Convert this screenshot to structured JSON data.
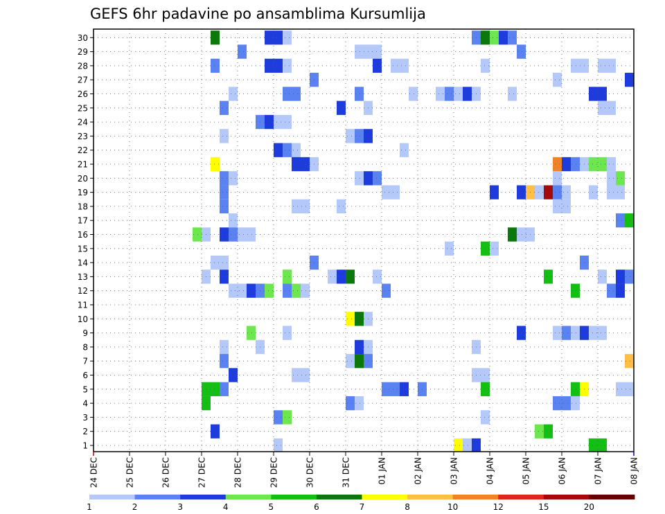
{
  "chart_data": {
    "type": "heatmap",
    "title": "GEFS 6hr padavine po ansamblima Kursumlija",
    "xlabel": "",
    "ylabel": "",
    "x_tick_labels": [
      "24 DEC",
      "25 DEC",
      "26 DEC",
      "27 DEC",
      "28 DEC",
      "29 DEC",
      "30 DEC",
      "31 DEC",
      "01 JAN",
      "02 JAN",
      "03 JAN",
      "04 JAN",
      "05 JAN",
      "06 JAN",
      "07 JAN",
      "08 JAN"
    ],
    "y_tick_labels": [
      "1",
      "2",
      "3",
      "4",
      "5",
      "6",
      "7",
      "8",
      "9",
      "10",
      "11",
      "12",
      "13",
      "14",
      "15",
      "16",
      "17",
      "18",
      "19",
      "20",
      "21",
      "22",
      "23",
      "24",
      "25",
      "26",
      "27",
      "28",
      "29",
      "30"
    ],
    "x_unit": "6-hour steps from 24 DEC 00Z",
    "xlim": [
      0,
      60
    ],
    "ylim": [
      0,
      30
    ],
    "grid": true,
    "legend": {
      "placement": "bottom",
      "bounds": [
        "1",
        "2",
        "3",
        "4",
        "5",
        "6",
        "7",
        "8",
        "10",
        "12",
        "15",
        "20"
      ],
      "colors": [
        "#b4c8fa",
        "#5a82f0",
        "#1e3cdc",
        "#6ee650",
        "#14be14",
        "#0a780a",
        "#ffff00",
        "#ffbe46",
        "#f08228",
        "#dc2814",
        "#a50a0a",
        "#640000"
      ]
    },
    "cells": [
      [
        14,
        30,
        6
      ],
      [
        20,
        30,
        3
      ],
      [
        21,
        30,
        3
      ],
      [
        22,
        30,
        1
      ],
      [
        43,
        30,
        2
      ],
      [
        44,
        30,
        6
      ],
      [
        45,
        30,
        4
      ],
      [
        46,
        30,
        3
      ],
      [
        47,
        30,
        2
      ],
      [
        17,
        29,
        2
      ],
      [
        30,
        29,
        1
      ],
      [
        31,
        29,
        1
      ],
      [
        32,
        29,
        1
      ],
      [
        48,
        29,
        2
      ],
      [
        14,
        28,
        2
      ],
      [
        20,
        28,
        3
      ],
      [
        21,
        28,
        3
      ],
      [
        22,
        28,
        1
      ],
      [
        32,
        28,
        3
      ],
      [
        34,
        28,
        1
      ],
      [
        35,
        28,
        1
      ],
      [
        44,
        28,
        1
      ],
      [
        54,
        28,
        1
      ],
      [
        55,
        28,
        1
      ],
      [
        57,
        28,
        1
      ],
      [
        58,
        28,
        1
      ],
      [
        25,
        27,
        2
      ],
      [
        52,
        27,
        1
      ],
      [
        60,
        27,
        3
      ],
      [
        16,
        26,
        1
      ],
      [
        22,
        26,
        2
      ],
      [
        23,
        26,
        2
      ],
      [
        30,
        26,
        2
      ],
      [
        36,
        26,
        1
      ],
      [
        39,
        26,
        1
      ],
      [
        40,
        26,
        2
      ],
      [
        41,
        26,
        1
      ],
      [
        42,
        26,
        3
      ],
      [
        43,
        26,
        1
      ],
      [
        47,
        26,
        1
      ],
      [
        56,
        26,
        3
      ],
      [
        57,
        26,
        3
      ],
      [
        15,
        25,
        2
      ],
      [
        28,
        25,
        3
      ],
      [
        31,
        25,
        1
      ],
      [
        57,
        25,
        1
      ],
      [
        58,
        25,
        1
      ],
      [
        19,
        24,
        2
      ],
      [
        20,
        24,
        3
      ],
      [
        21,
        24,
        1
      ],
      [
        22,
        24,
        1
      ],
      [
        15,
        23,
        1
      ],
      [
        29,
        23,
        1
      ],
      [
        30,
        23,
        2
      ],
      [
        31,
        23,
        3
      ],
      [
        21,
        22,
        3
      ],
      [
        22,
        22,
        2
      ],
      [
        23,
        22,
        1
      ],
      [
        35,
        22,
        1
      ],
      [
        14,
        21,
        7
      ],
      [
        23,
        21,
        3
      ],
      [
        24,
        21,
        3
      ],
      [
        25,
        21,
        1
      ],
      [
        52,
        21,
        9
      ],
      [
        53,
        21,
        3
      ],
      [
        54,
        21,
        2
      ],
      [
        55,
        21,
        1
      ],
      [
        56,
        21,
        4
      ],
      [
        57,
        21,
        4
      ],
      [
        58,
        21,
        1
      ],
      [
        15,
        20,
        2
      ],
      [
        16,
        20,
        1
      ],
      [
        30,
        20,
        1
      ],
      [
        31,
        20,
        3
      ],
      [
        32,
        20,
        2
      ],
      [
        52,
        20,
        1
      ],
      [
        58,
        20,
        1
      ],
      [
        59,
        20,
        4
      ],
      [
        15,
        19,
        2
      ],
      [
        33,
        19,
        1
      ],
      [
        34,
        19,
        1
      ],
      [
        45,
        19,
        3
      ],
      [
        48,
        19,
        3
      ],
      [
        49,
        19,
        8
      ],
      [
        50,
        19,
        1
      ],
      [
        51,
        19,
        11
      ],
      [
        52,
        19,
        2
      ],
      [
        53,
        19,
        1
      ],
      [
        56,
        19,
        1
      ],
      [
        58,
        19,
        1
      ],
      [
        59,
        19,
        1
      ],
      [
        15,
        18,
        2
      ],
      [
        23,
        18,
        1
      ],
      [
        24,
        18,
        1
      ],
      [
        28,
        18,
        1
      ],
      [
        52,
        18,
        1
      ],
      [
        53,
        18,
        1
      ],
      [
        16,
        17,
        1
      ],
      [
        59,
        17,
        2
      ],
      [
        60,
        17,
        5
      ],
      [
        12,
        16,
        4
      ],
      [
        13,
        16,
        1
      ],
      [
        15,
        16,
        3
      ],
      [
        16,
        16,
        2
      ],
      [
        17,
        16,
        1
      ],
      [
        18,
        16,
        1
      ],
      [
        47,
        16,
        6
      ],
      [
        48,
        16,
        1
      ],
      [
        49,
        16,
        1
      ],
      [
        40,
        15,
        1
      ],
      [
        44,
        15,
        5
      ],
      [
        45,
        15,
        1
      ],
      [
        14,
        14,
        1
      ],
      [
        15,
        14,
        1
      ],
      [
        25,
        14,
        2
      ],
      [
        55,
        14,
        2
      ],
      [
        13,
        13,
        1
      ],
      [
        15,
        13,
        3
      ],
      [
        22,
        13,
        4
      ],
      [
        27,
        13,
        1
      ],
      [
        28,
        13,
        3
      ],
      [
        29,
        13,
        6
      ],
      [
        32,
        13,
        1
      ],
      [
        51,
        13,
        5
      ],
      [
        57,
        13,
        1
      ],
      [
        59,
        13,
        3
      ],
      [
        60,
        13,
        2
      ],
      [
        16,
        12,
        1
      ],
      [
        17,
        12,
        1
      ],
      [
        18,
        12,
        3
      ],
      [
        19,
        12,
        2
      ],
      [
        20,
        12,
        4
      ],
      [
        22,
        12,
        2
      ],
      [
        23,
        12,
        4
      ],
      [
        24,
        12,
        1
      ],
      [
        33,
        12,
        2
      ],
      [
        54,
        12,
        5
      ],
      [
        58,
        12,
        2
      ],
      [
        59,
        12,
        3
      ],
      [
        29,
        10,
        7
      ],
      [
        30,
        10,
        6
      ],
      [
        31,
        10,
        1
      ],
      [
        18,
        9,
        4
      ],
      [
        22,
        9,
        1
      ],
      [
        48,
        9,
        3
      ],
      [
        52,
        9,
        1
      ],
      [
        53,
        9,
        2
      ],
      [
        54,
        9,
        1
      ],
      [
        55,
        9,
        3
      ],
      [
        56,
        9,
        1
      ],
      [
        57,
        9,
        1
      ],
      [
        15,
        8,
        1
      ],
      [
        19,
        8,
        1
      ],
      [
        30,
        8,
        3
      ],
      [
        31,
        8,
        1
      ],
      [
        43,
        8,
        1
      ],
      [
        15,
        7,
        2
      ],
      [
        29,
        7,
        1
      ],
      [
        30,
        7,
        6
      ],
      [
        31,
        7,
        2
      ],
      [
        60,
        7,
        8
      ],
      [
        16,
        6,
        3
      ],
      [
        23,
        6,
        1
      ],
      [
        24,
        6,
        1
      ],
      [
        43,
        6,
        1
      ],
      [
        44,
        6,
        1
      ],
      [
        13,
        5,
        5
      ],
      [
        14,
        5,
        5
      ],
      [
        15,
        5,
        2
      ],
      [
        33,
        5,
        2
      ],
      [
        34,
        5,
        2
      ],
      [
        35,
        5,
        3
      ],
      [
        37,
        5,
        2
      ],
      [
        44,
        5,
        5
      ],
      [
        54,
        5,
        5
      ],
      [
        55,
        5,
        7
      ],
      [
        59,
        5,
        1
      ],
      [
        60,
        5,
        1
      ],
      [
        13,
        4,
        5
      ],
      [
        29,
        4,
        2
      ],
      [
        30,
        4,
        1
      ],
      [
        52,
        4,
        2
      ],
      [
        53,
        4,
        2
      ],
      [
        54,
        4,
        1
      ],
      [
        21,
        3,
        2
      ],
      [
        22,
        3,
        4
      ],
      [
        44,
        3,
        1
      ],
      [
        14,
        2,
        3
      ],
      [
        50,
        2,
        4
      ],
      [
        51,
        2,
        5
      ],
      [
        21,
        1,
        1
      ],
      [
        41,
        1,
        7
      ],
      [
        42,
        1,
        1
      ],
      [
        43,
        1,
        3
      ],
      [
        56,
        1,
        5
      ],
      [
        57,
        1,
        5
      ]
    ]
  }
}
